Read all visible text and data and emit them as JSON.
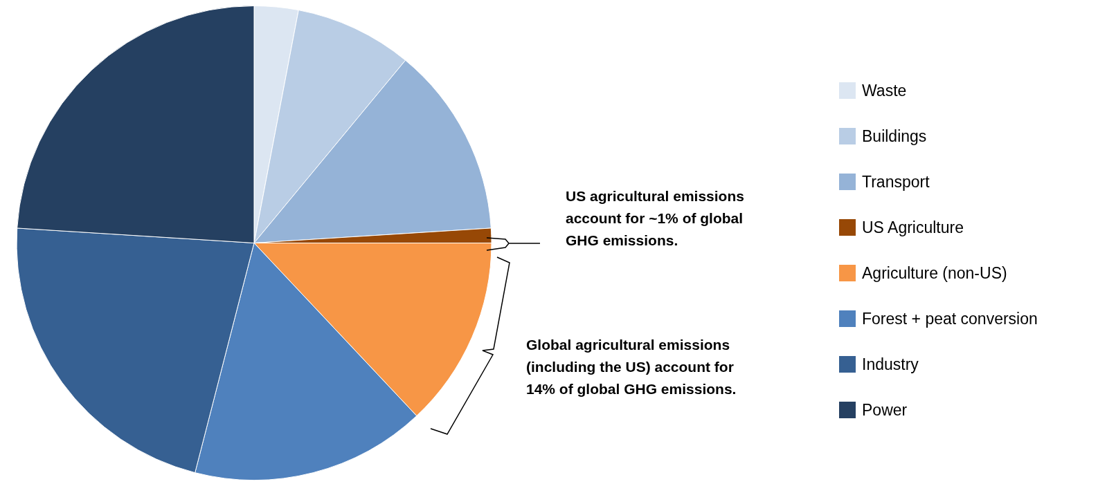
{
  "chart_data": {
    "type": "pie",
    "categories": [
      "Waste",
      "Buildings",
      "Transport",
      "US Agriculture",
      "Agriculture (non-US)",
      "Forest + peat conversion",
      "Industry",
      "Power"
    ],
    "values": [
      3,
      8,
      13,
      1,
      13,
      16,
      22,
      24
    ],
    "colors": [
      "#dce6f2",
      "#b9cde5",
      "#95b3d7",
      "#974806",
      "#f79646",
      "#4f81bd",
      "#366092",
      "#254061"
    ],
    "annotations": [
      "US agricultural emissions account for ~1% of global GHG emissions.",
      "Global agricultural emissions (including the US) account for 14% of global GHG emissions."
    ],
    "legend": "right"
  }
}
